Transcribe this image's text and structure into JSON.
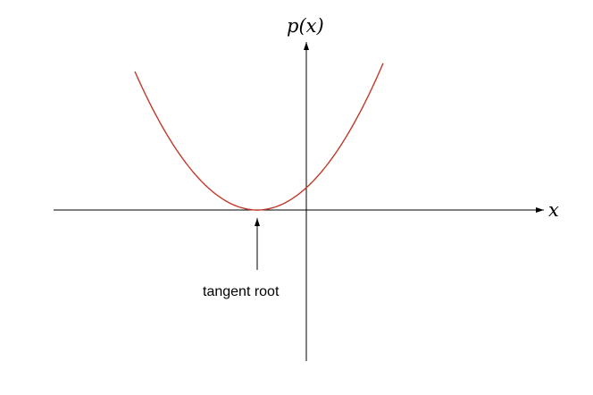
{
  "axes": {
    "x_label": "x",
    "y_label": "p(x)"
  },
  "annotation": {
    "label": "tangent root"
  },
  "curve": {
    "type": "parabola",
    "tangent_root": -1,
    "color": "#c0392b"
  }
}
